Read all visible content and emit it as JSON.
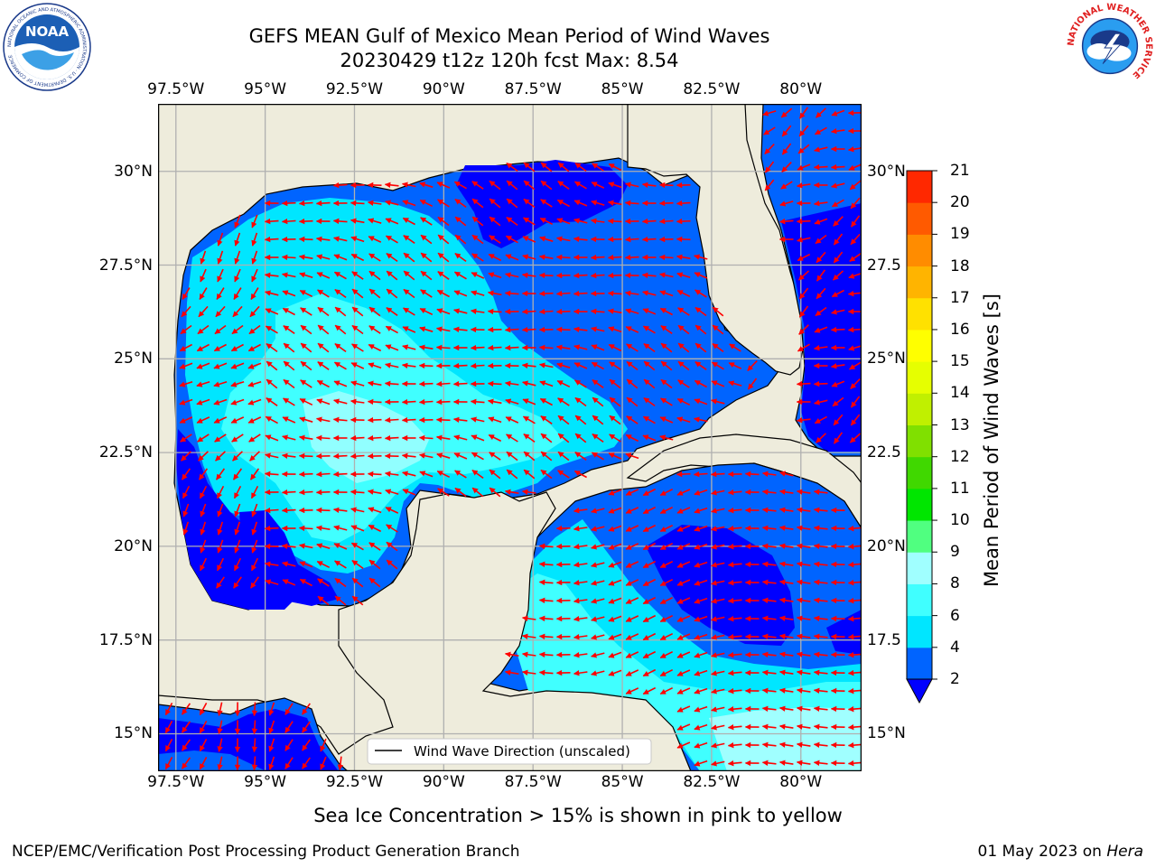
{
  "title": {
    "line1": "GEFS MEAN Gulf of Mexico Mean Period of Wind Waves",
    "line2": "20230429 t12z 120h fcst   Max: 8.54"
  },
  "logos": {
    "noaa_text": "NOAA",
    "noaa_ring_text": "NATIONAL OCEANIC AND ATMOSPHERIC ADMINISTRATION · U.S. DEPARTMENT OF COMMERCE",
    "nws_ring_text": "NATIONAL WEATHER SERVICE"
  },
  "map": {
    "region": "Gulf of Mexico",
    "lon_ticks": [
      "97.5°W",
      "95°W",
      "92.5°W",
      "90°W",
      "87.5°W",
      "85°W",
      "82.5°W",
      "80°W"
    ],
    "lat_ticks_left": [
      "30°N",
      "27.5°N",
      "25°N",
      "22.5°N",
      "20°N",
      "17.5°N",
      "15°N"
    ],
    "lat_ticks_right": [
      "30°N",
      "27.5",
      "25°N",
      "22.5",
      "20°N",
      "17.5",
      "15°N"
    ],
    "extent": {
      "lon_min": -98.0,
      "lon_max": -78.3,
      "lat_min": 14.0,
      "lat_max": 31.8
    },
    "colors": {
      "land": "#eeecdc",
      "grid": "#b0b0b0",
      "coast": "#000000",
      "arrow": "#ff0000"
    },
    "legend_label": "Wind Wave Direction (unscaled)",
    "max_period_s": 8.54
  },
  "colorbar": {
    "label": "Mean Period of Wind Waves [s]",
    "ticks": [
      "2",
      "4",
      "6",
      "8",
      "9",
      "10",
      "11",
      "12",
      "13",
      "14",
      "15",
      "16",
      "17",
      "18",
      "19",
      "20",
      "21"
    ],
    "colors": [
      "#0064ff",
      "#00e6ff",
      "#40ffff",
      "#a0ffff",
      "#50ff80",
      "#00e600",
      "#40d800",
      "#80e000",
      "#c0f000",
      "#e6ff00",
      "#ffff00",
      "#ffe100",
      "#ffb400",
      "#ff8c00",
      "#ff5a00",
      "#ff2800",
      "#ff0000"
    ],
    "under_color": "#0000ff"
  },
  "sea_ice_note": "Sea Ice Concentration > 15% is shown in pink to yellow",
  "footer": {
    "left": "NCEP/EMC/Verification Post Processing Product Generation Branch",
    "right_date": "01 May 2023 on",
    "right_host": "Hera"
  }
}
